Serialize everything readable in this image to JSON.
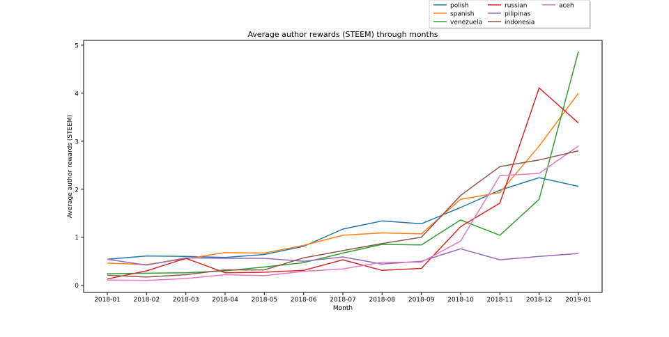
{
  "chart_data": {
    "type": "line",
    "title": "Average author rewards (STEEM) through months",
    "xlabel": "Month",
    "ylabel": "Average author rewards (STEEM)",
    "x": [
      "2018-01",
      "2018-02",
      "2018-03",
      "2018-04",
      "2018-05",
      "2018-06",
      "2018-07",
      "2018-08",
      "2018-09",
      "2018-10",
      "2018-11",
      "2018-12",
      "2019-01"
    ],
    "ylim": [
      -0.15,
      5.1
    ],
    "yticks": [
      0,
      1,
      2,
      3,
      4,
      5
    ],
    "grid": false,
    "legend_position": "top-right, outside plot area",
    "series": [
      {
        "name": "polish",
        "color": "#1f77b4",
        "values": [
          0.54,
          0.61,
          0.6,
          0.58,
          0.64,
          0.81,
          1.17,
          1.34,
          1.28,
          1.62,
          1.98,
          2.24,
          2.06
        ]
      },
      {
        "name": "spanish",
        "color": "#ff7f0e",
        "values": [
          0.46,
          0.43,
          0.55,
          0.68,
          0.67,
          0.83,
          1.04,
          1.09,
          1.07,
          1.79,
          1.93,
          2.9,
          4.0
        ]
      },
      {
        "name": "venezuela",
        "color": "#2ca02c",
        "values": [
          0.24,
          0.25,
          0.26,
          0.3,
          0.38,
          0.47,
          0.67,
          0.85,
          0.84,
          1.36,
          1.04,
          1.79,
          4.87
        ]
      },
      {
        "name": "russian",
        "color": "#d62728",
        "values": [
          0.13,
          0.3,
          0.56,
          0.26,
          0.27,
          0.31,
          0.53,
          0.31,
          0.35,
          1.22,
          1.71,
          4.11,
          3.38
        ]
      },
      {
        "name": "pilipinas",
        "color": "#9467bd",
        "values": [
          0.54,
          0.42,
          0.57,
          0.56,
          0.56,
          0.5,
          0.59,
          0.44,
          0.5,
          0.76,
          0.53,
          0.6,
          0.66
        ]
      },
      {
        "name": "aceh",
        "color": "#e377c2",
        "values": [
          0.11,
          0.1,
          0.14,
          0.22,
          0.2,
          0.29,
          0.34,
          0.48,
          0.48,
          0.92,
          2.28,
          2.33,
          2.9
        ]
      },
      {
        "name": "indonesia",
        "color": "#8c564b",
        "values": [
          0.21,
          0.17,
          0.22,
          0.32,
          0.32,
          0.57,
          0.72,
          0.87,
          1.0,
          1.87,
          2.47,
          2.61,
          2.8
        ]
      }
    ],
    "legend_order": [
      "polish",
      "spanish",
      "venezuela",
      "russian",
      "pilipinas",
      "indonesia",
      "aceh"
    ]
  }
}
